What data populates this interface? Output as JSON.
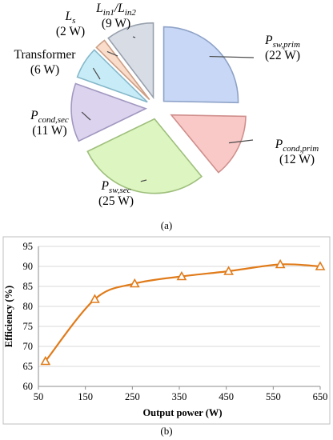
{
  "chart_data": [
    {
      "type": "pie",
      "caption": "(a)",
      "unit": "W",
      "colors": {
        "line": "#4a4a4a"
      },
      "slices": [
        {
          "name": "P",
          "sub": "sw,prim",
          "value": 22,
          "value_label": "(22 W)",
          "fill": "#c7d7f5",
          "stroke": "#8ea2c8"
        },
        {
          "name": "P",
          "sub": "cond,prim",
          "value": 12,
          "value_label": "(12 W)",
          "fill": "#f9c9c7",
          "stroke": "#cf8f8c"
        },
        {
          "name": "P",
          "sub": "sw,sec",
          "value": 25,
          "value_label": "(25 W)",
          "fill": "#ddf5c0",
          "stroke": "#9ebf7c"
        },
        {
          "name": "P",
          "sub": "cond,sec",
          "value": 11,
          "value_label": "(11 W)",
          "fill": "#dcd3ef",
          "stroke": "#a298c0"
        },
        {
          "name": "Transformer",
          "sub": "",
          "value": 6,
          "value_label": "(6 W)",
          "fill": "#c7ecf8",
          "stroke": "#86b8c9"
        },
        {
          "name": "L",
          "sub": "s",
          "value": 2,
          "value_label": "(2 W)",
          "fill": "#fadccb",
          "stroke": "#cc9f86"
        },
        {
          "name": "L",
          "sub": "in1",
          "name2": "/L",
          "sub2": "in2",
          "value": 9,
          "value_label": "(9 W)",
          "fill": "#d8dde5",
          "stroke": "#98a0ad"
        }
      ]
    },
    {
      "type": "line",
      "caption": "(b)",
      "xlabel": "Output power (W)",
      "ylabel": "Efficiency (%)",
      "xlim": [
        50,
        650
      ],
      "ylim": [
        60,
        95
      ],
      "x_ticks": [
        50,
        150,
        250,
        350,
        450,
        550,
        650
      ],
      "y_ticks": [
        60,
        65,
        70,
        75,
        80,
        85,
        90,
        95
      ],
      "grid": "horizontal",
      "marker": "triangle",
      "color": "#e07b1a",
      "series": [
        {
          "x": [
            65,
            170,
            255,
            355,
            455,
            565,
            650
          ],
          "y": [
            66.3,
            81.8,
            85.7,
            87.5,
            88.8,
            90.5,
            90.0
          ]
        }
      ]
    }
  ]
}
